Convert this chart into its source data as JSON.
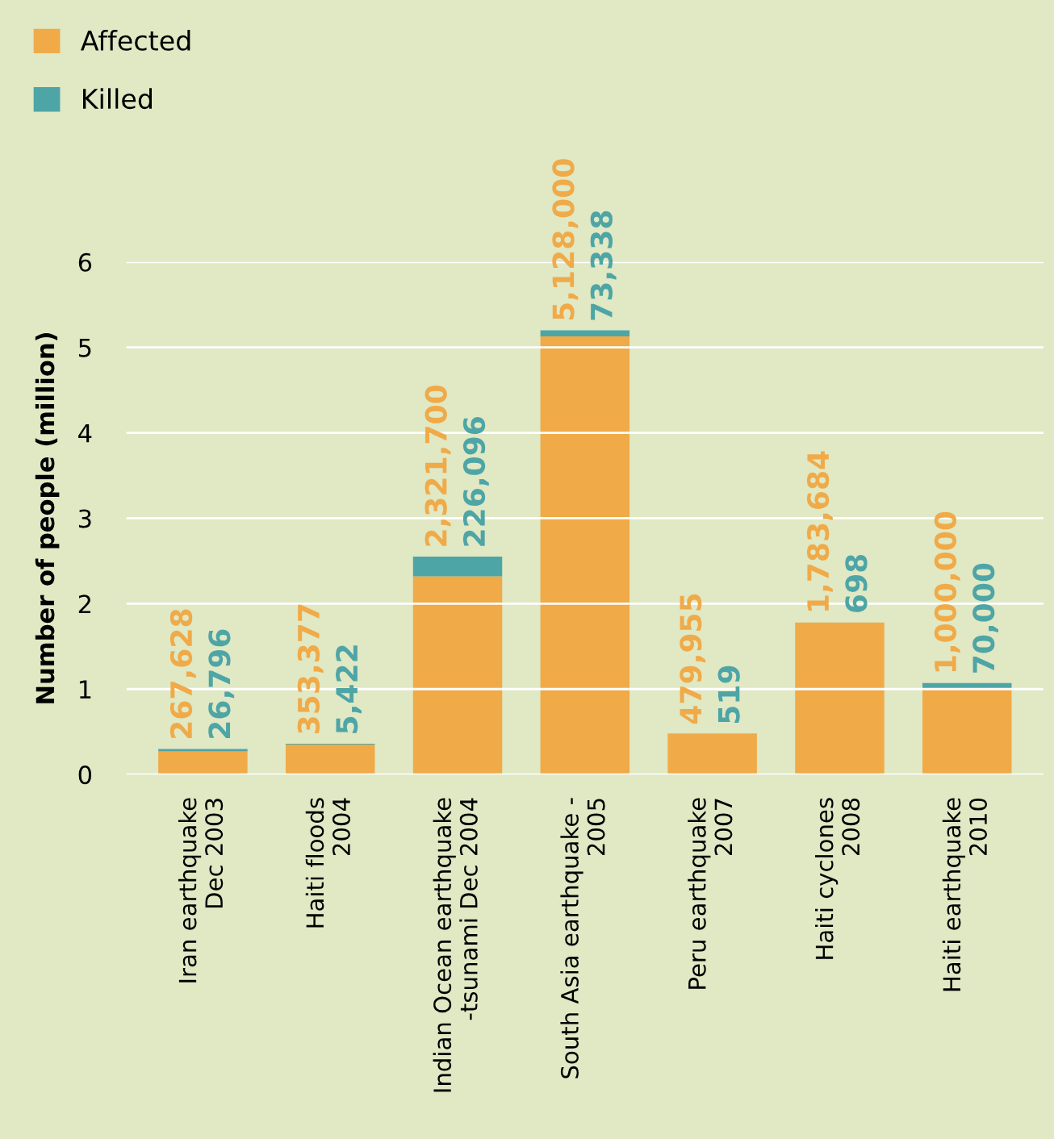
{
  "chart_data": {
    "type": "bar",
    "stacked": true,
    "ylabel": "Number of people (million)",
    "categories": [
      "Iran earthquake\nDec 2003",
      "Haiti floods\n2004",
      "Indian Ocean earthquake\n-tsunami Dec 2004",
      "South Asia earthquake -\n2005",
      "Peru earthquake\n2007",
      "Haiti cyclones\n2008",
      "Haiti earthquake\n2010"
    ],
    "series": [
      {
        "name": "Affected",
        "color": "#f0aa48",
        "values": [
          0.27,
          0.35,
          2.32,
          5.13,
          0.48,
          1.78,
          1.0
        ]
      },
      {
        "name": "Killed",
        "color": "#4ea5a6",
        "values": [
          0.03,
          0.01,
          0.23,
          0.07,
          0.0,
          0.0,
          0.07
        ]
      }
    ],
    "annotations": [
      {
        "text": "267,628",
        "x": "Iran earthquake\nDec 2003",
        "y": 0.3
      },
      {
        "text": "353,377",
        "x": "Haiti floods\n2004",
        "y": 0.36
      },
      {
        "text": "2,321,700",
        "x": "Indian Ocean earthquake\n-tsunami Dec 2004",
        "y": 2.55
      },
      {
        "text": "5,128,000",
        "x": "South Asia earthquake -\n2005",
        "y": 5.2
      },
      {
        "text": "479,955",
        "x": "Peru earthquake\n2007",
        "y": 0.48
      },
      {
        "text": "1,783,684",
        "x": "Haiti cyclones\n2008",
        "y": 1.78
      },
      {
        "text": "1,000,000",
        "x": "Haiti earthquake\n2010",
        "y": 1.07
      },
      {
        "text": "26,796",
        "x": "Iran earthquake\nDec 2003",
        "y": 0.3
      },
      {
        "text": "5,422",
        "x": "Haiti floods\n2004",
        "y": 0.36
      },
      {
        "text": "226,096",
        "x": "Indian Ocean earthquake\n-tsunami Dec 2004",
        "y": 2.55
      },
      {
        "text": "73,338",
        "x": "South Asia earthquake -\n2005",
        "y": 5.2
      },
      {
        "text": "519",
        "x": "Peru earthquake\n2007",
        "y": 0.48
      },
      {
        "text": "698",
        "x": "Haiti cyclones\n2008",
        "y": 1.78
      },
      {
        "text": "70,000",
        "x": "Haiti earthquake\n2010",
        "y": 1.07
      }
    ],
    "ylim": [
      0,
      6
    ],
    "yticks": [
      0,
      1,
      2,
      3,
      4,
      5,
      6
    ],
    "grid": "y",
    "legend": "top left"
  }
}
